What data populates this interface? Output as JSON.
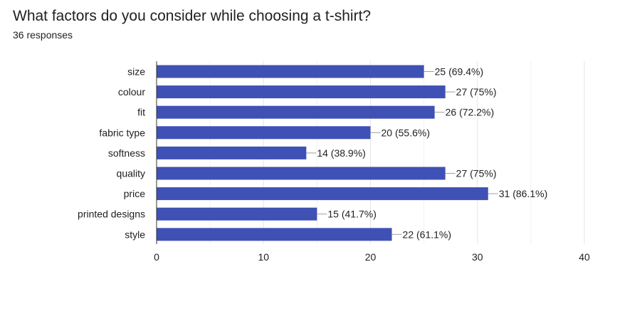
{
  "question": {
    "title": "What factors do you consider while choosing a t-shirt?",
    "responses": "36 responses"
  },
  "colors": {
    "bar": "#3f51b5",
    "grid": "#e6e6e6",
    "axis": "#333333",
    "leader": "#9e9e9e"
  },
  "chart_data": {
    "type": "bar",
    "orientation": "horizontal",
    "categories": [
      "size",
      "colour",
      "fit",
      "fabric type",
      "softness",
      "quality",
      "price",
      "printed designs",
      "style"
    ],
    "values": [
      25,
      27,
      26,
      20,
      14,
      27,
      31,
      15,
      22
    ],
    "data_labels": [
      "25 (69.4%)",
      "27 (75%)",
      "26 (72.2%)",
      "20 (55.6%)",
      "14 (38.9%)",
      "27 (75%)",
      "31 (86.1%)",
      "15 (41.7%)",
      "22 (61.1%)"
    ],
    "xlim": [
      0,
      40
    ],
    "xticks": [
      0,
      10,
      20,
      30,
      40
    ],
    "grid": true
  }
}
